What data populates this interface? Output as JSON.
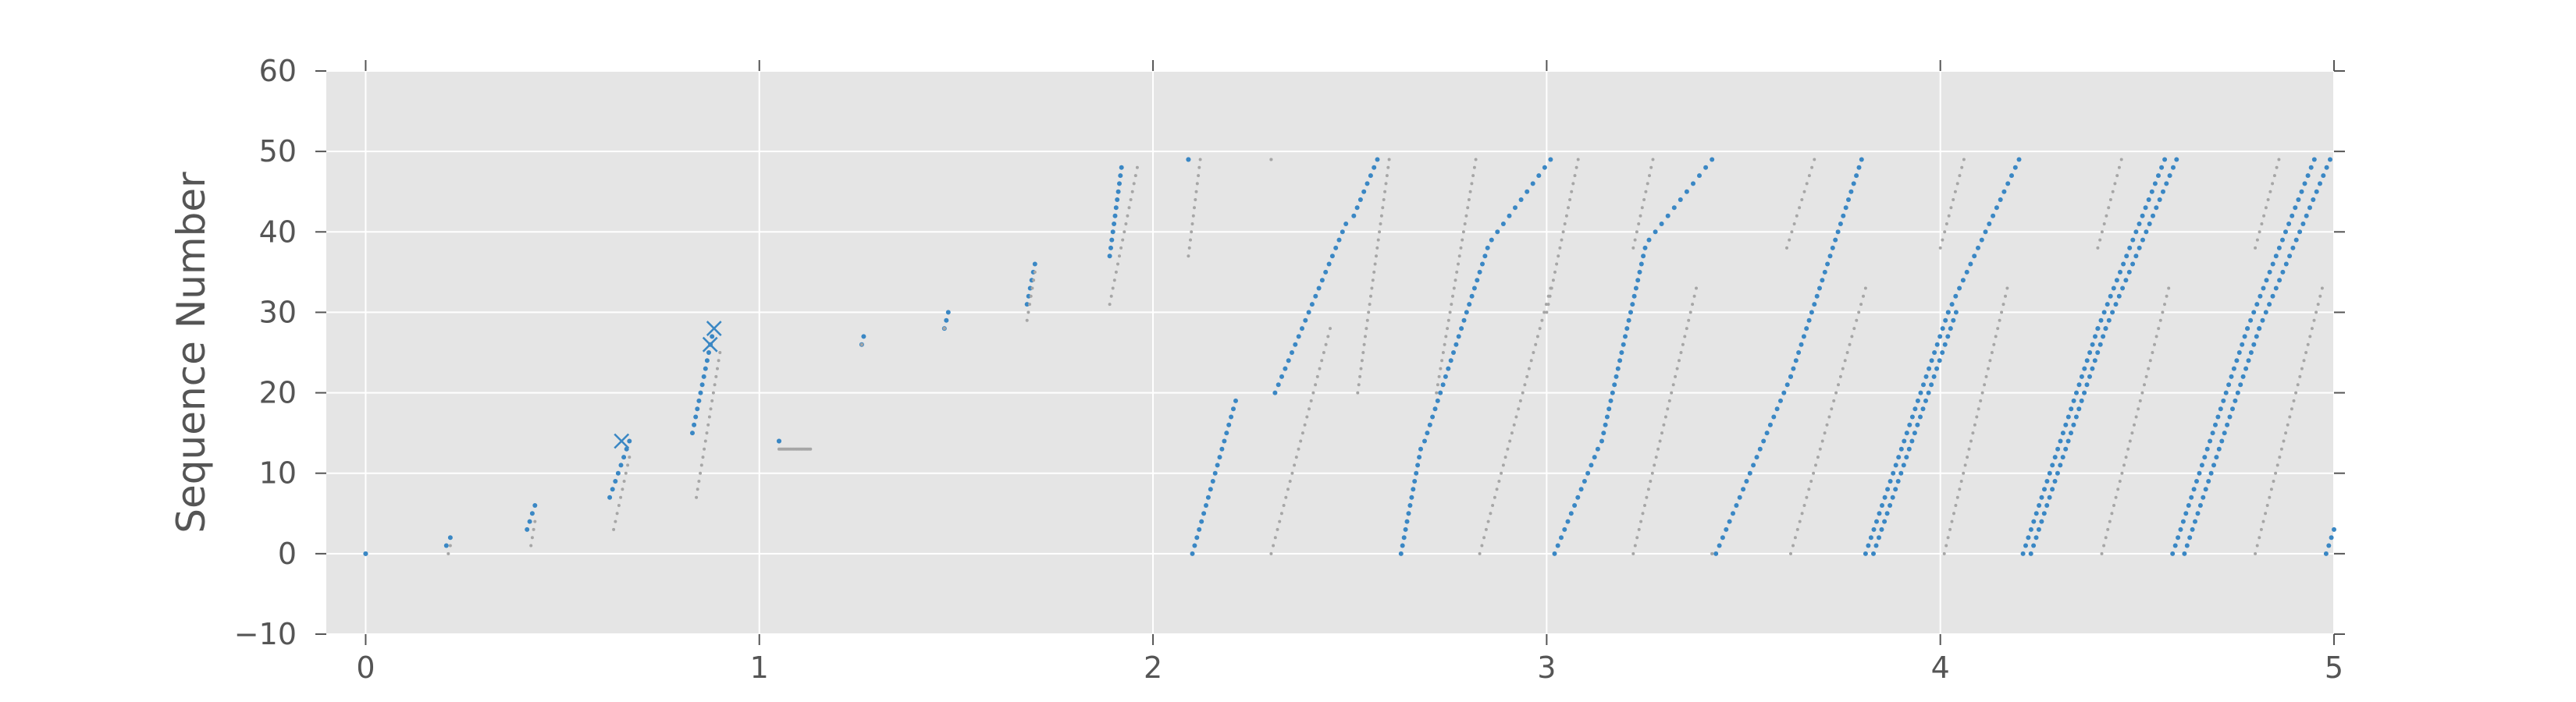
{
  "chart_data": {
    "type": "scatter",
    "title": "",
    "xlabel": "",
    "ylabel": "Sequence Number",
    "xlim": [
      -0.1,
      5.0
    ],
    "ylim": [
      -10,
      60
    ],
    "xticks": [
      "0",
      "1",
      "2",
      "3",
      "4",
      "5"
    ],
    "yticks": [
      "−10",
      "0",
      "10",
      "20",
      "30",
      "40",
      "50",
      "60"
    ],
    "grid": true,
    "legend": "none",
    "colors": {
      "background": "#e5e5e5",
      "grid": "#ffffff",
      "primary": "#3a87c4",
      "faint": "#a6a6a6",
      "text": "#555555",
      "tick": "#555555"
    },
    "series": [
      {
        "style": "sent",
        "segments": [
          {
            "x0": 0.0,
            "y0": 0,
            "x1": 0.0,
            "y1": 0
          },
          {
            "x0": 0.205,
            "y0": 1,
            "x1": 0.215,
            "y1": 2
          },
          {
            "x0": 0.41,
            "y0": 3,
            "x1": 0.43,
            "y1": 6
          },
          {
            "x0": 0.62,
            "y0": 7,
            "x1": 0.67,
            "y1": 14
          },
          {
            "x0": 0.83,
            "y0": 15,
            "x1": 0.88,
            "y1": 27
          },
          {
            "x0": 1.05,
            "y0": 14,
            "x1": 1.05,
            "y1": 14
          },
          {
            "x0": 1.26,
            "y0": 26,
            "x1": 1.265,
            "y1": 27
          },
          {
            "x0": 1.47,
            "y0": 28,
            "x1": 1.48,
            "y1": 30
          },
          {
            "x0": 1.68,
            "y0": 31,
            "x1": 1.7,
            "y1": 36
          },
          {
            "x0": 1.89,
            "y0": 37,
            "x1": 1.92,
            "y1": 48
          },
          {
            "x0": 2.09,
            "y0": 49,
            "x1": 2.09,
            "y1": 49
          },
          {
            "x0": 2.1,
            "y0": 0,
            "x1": 2.21,
            "y1": 19
          },
          {
            "x0": 2.31,
            "y0": 20,
            "x1": 2.49,
            "y1": 41
          },
          {
            "x0": 2.51,
            "y0": 42,
            "x1": 2.57,
            "y1": 49
          },
          {
            "x0": 2.63,
            "y0": 0,
            "x1": 2.68,
            "y1": 13
          },
          {
            "x0": 2.69,
            "y0": 14,
            "x1": 2.85,
            "y1": 38
          },
          {
            "x0": 2.86,
            "y0": 39,
            "x1": 3.01,
            "y1": 49
          },
          {
            "x0": 3.02,
            "y0": 0,
            "x1": 3.13,
            "y1": 13
          },
          {
            "x0": 3.14,
            "y0": 14,
            "x1": 3.25,
            "y1": 38
          },
          {
            "x0": 3.26,
            "y0": 39,
            "x1": 3.42,
            "y1": 49
          },
          {
            "x0": 3.43,
            "y0": 0,
            "x1": 3.62,
            "y1": 22
          },
          {
            "x0": 3.62,
            "y0": 22,
            "x1": 3.8,
            "y1": 49
          },
          {
            "x0": 3.81,
            "y0": 0,
            "x1": 4.02,
            "y1": 30
          },
          {
            "x0": 3.83,
            "y0": 0,
            "x1": 4.04,
            "y1": 30
          },
          {
            "x0": 4.02,
            "y0": 30,
            "x1": 4.2,
            "y1": 49
          },
          {
            "x0": 4.21,
            "y0": 0,
            "x1": 4.4,
            "y1": 28
          },
          {
            "x0": 4.23,
            "y0": 0,
            "x1": 4.42,
            "y1": 28
          },
          {
            "x0": 4.4,
            "y0": 28,
            "x1": 4.57,
            "y1": 49
          },
          {
            "x0": 4.42,
            "y0": 28,
            "x1": 4.6,
            "y1": 49
          },
          {
            "x0": 4.59,
            "y0": 0,
            "x1": 4.78,
            "y1": 28
          },
          {
            "x0": 4.62,
            "y0": 0,
            "x1": 4.81,
            "y1": 28
          },
          {
            "x0": 4.78,
            "y0": 28,
            "x1": 4.95,
            "y1": 49
          },
          {
            "x0": 4.81,
            "y0": 28,
            "x1": 4.99,
            "y1": 49
          },
          {
            "x0": 4.98,
            "y0": 0,
            "x1": 5.0,
            "y1": 3
          }
        ]
      },
      {
        "style": "ack",
        "segments": [
          {
            "x0": 0.21,
            "y0": 0,
            "x1": 0.215,
            "y1": 1
          },
          {
            "x0": 0.42,
            "y0": 1,
            "x1": 0.43,
            "y1": 4
          },
          {
            "x0": 0.63,
            "y0": 3,
            "x1": 0.67,
            "y1": 12
          },
          {
            "x0": 0.84,
            "y0": 7,
            "x1": 0.9,
            "y1": 25
          },
          {
            "x0": 1.05,
            "y0": 13,
            "x1": 1.13,
            "y1": 13
          },
          {
            "x0": 1.26,
            "y0": 26,
            "x1": 1.26,
            "y1": 26
          },
          {
            "x0": 1.47,
            "y0": 28,
            "x1": 1.47,
            "y1": 28
          },
          {
            "x0": 1.68,
            "y0": 29,
            "x1": 1.7,
            "y1": 35
          },
          {
            "x0": 1.89,
            "y0": 31,
            "x1": 1.96,
            "y1": 48
          },
          {
            "x0": 2.09,
            "y0": 37,
            "x1": 2.12,
            "y1": 49
          },
          {
            "x0": 2.3,
            "y0": 0,
            "x1": 2.45,
            "y1": 28
          },
          {
            "x0": 2.3,
            "y0": 49,
            "x1": 2.3,
            "y1": 49
          },
          {
            "x0": 2.52,
            "y0": 20,
            "x1": 2.6,
            "y1": 49
          },
          {
            "x0": 2.72,
            "y0": 20,
            "x1": 2.82,
            "y1": 49
          },
          {
            "x0": 2.83,
            "y0": 0,
            "x1": 3.01,
            "y1": 33
          },
          {
            "x0": 3.0,
            "y0": 30,
            "x1": 3.08,
            "y1": 49
          },
          {
            "x0": 3.22,
            "y0": 0,
            "x1": 3.38,
            "y1": 33
          },
          {
            "x0": 3.22,
            "y0": 38,
            "x1": 3.27,
            "y1": 49
          },
          {
            "x0": 3.42,
            "y0": 0,
            "x1": 3.42,
            "y1": 0
          },
          {
            "x0": 3.62,
            "y0": 0,
            "x1": 3.81,
            "y1": 33
          },
          {
            "x0": 3.61,
            "y0": 38,
            "x1": 3.68,
            "y1": 49
          },
          {
            "x0": 4.01,
            "y0": 0,
            "x1": 4.17,
            "y1": 33
          },
          {
            "x0": 4.0,
            "y0": 38,
            "x1": 4.06,
            "y1": 49
          },
          {
            "x0": 4.41,
            "y0": 0,
            "x1": 4.58,
            "y1": 33
          },
          {
            "x0": 4.4,
            "y0": 38,
            "x1": 4.46,
            "y1": 49
          },
          {
            "x0": 4.8,
            "y0": 0,
            "x1": 4.97,
            "y1": 33
          },
          {
            "x0": 4.8,
            "y0": 38,
            "x1": 4.86,
            "y1": 49
          }
        ]
      },
      {
        "style": "loss",
        "points": [
          {
            "x": 0.65,
            "y": 14
          },
          {
            "x": 0.885,
            "y": 28
          },
          {
            "x": 0.875,
            "y": 26
          }
        ]
      }
    ]
  }
}
